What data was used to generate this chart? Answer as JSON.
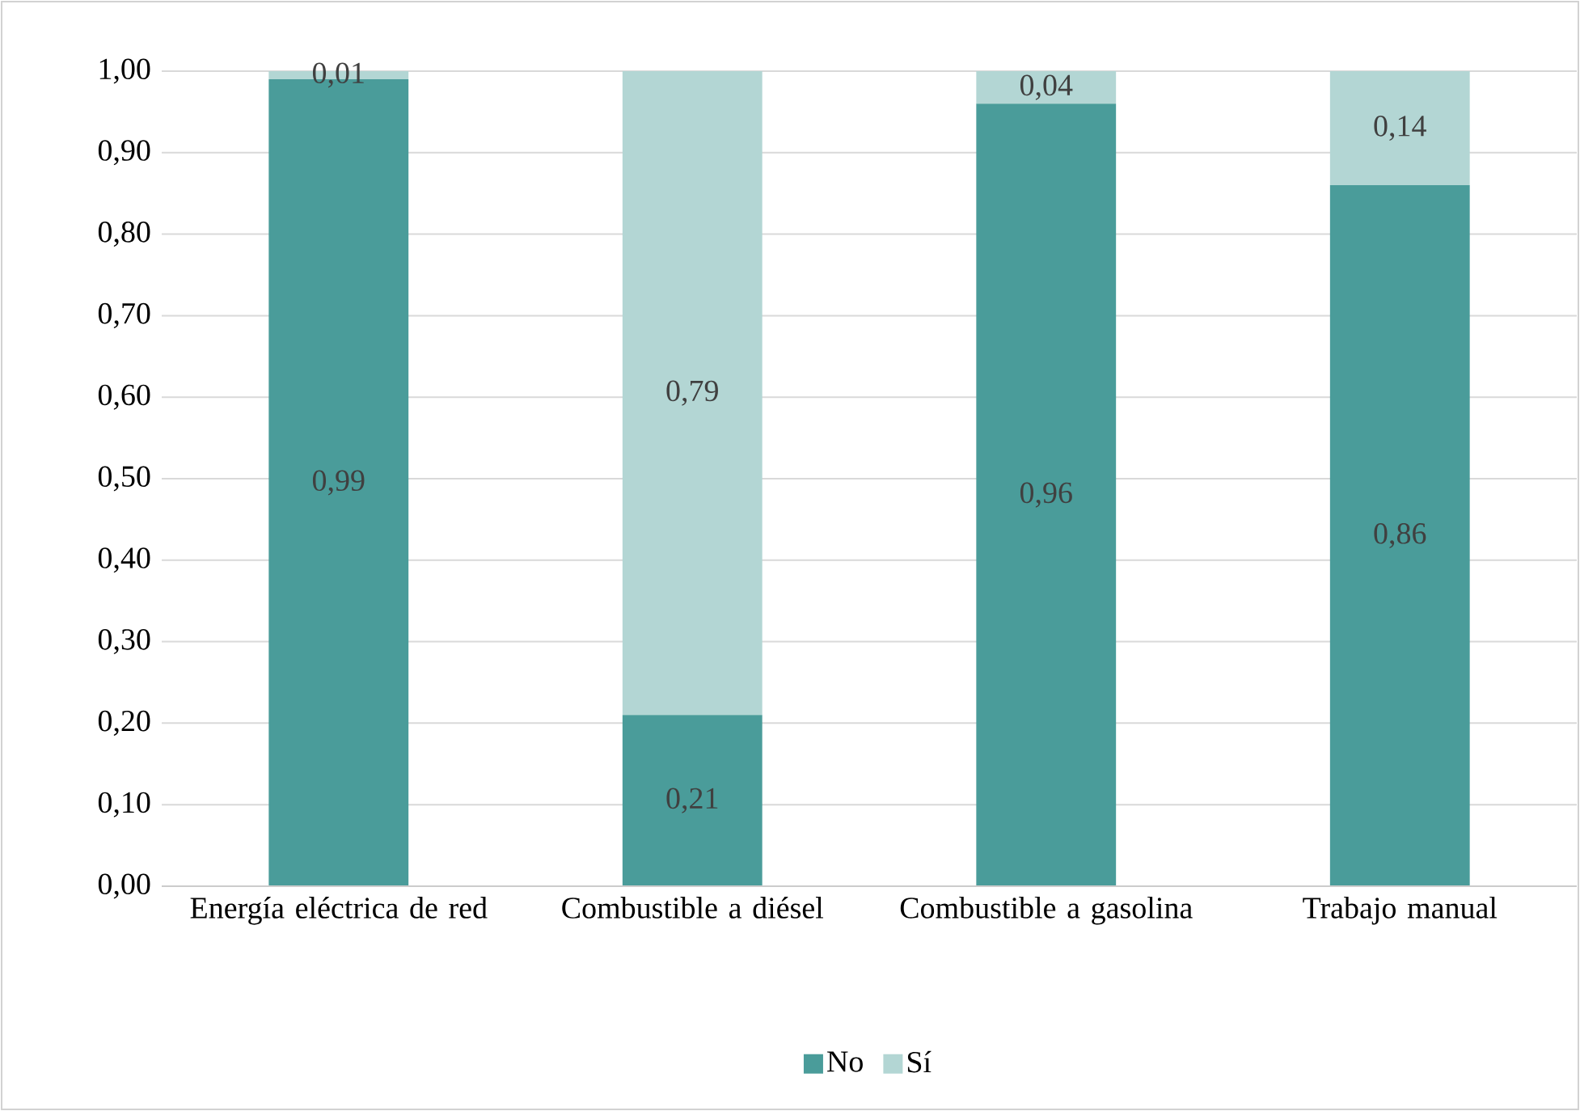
{
  "chart_data": {
    "type": "bar",
    "stacked": true,
    "categories": [
      "Energía eléctrica de red",
      "Combustible a diésel",
      "Combustible a gasolina",
      "Trabajo manual"
    ],
    "series": [
      {
        "name": "No",
        "color": "#4a9c9a",
        "values": [
          0.99,
          0.21,
          0.96,
          0.86
        ],
        "value_labels": [
          "0,99",
          "0,21",
          "0,96",
          "0,86"
        ]
      },
      {
        "name": "Sí",
        "color": "#b3d6d4",
        "values": [
          0.01,
          0.79,
          0.04,
          0.14
        ],
        "value_labels": [
          "0,01",
          "0,79",
          "0,04",
          "0,14"
        ]
      }
    ],
    "ylim": [
      0,
      1
    ],
    "yticks": [
      {
        "value": 0,
        "label": "0,00"
      },
      {
        "value": 0.1,
        "label": "0,10"
      },
      {
        "value": 0.2,
        "label": "0,20"
      },
      {
        "value": 0.3,
        "label": "0,30"
      },
      {
        "value": 0.4,
        "label": "0,40"
      },
      {
        "value": 0.5,
        "label": "0,50"
      },
      {
        "value": 0.6,
        "label": "0,60"
      },
      {
        "value": 0.7,
        "label": "0,70"
      },
      {
        "value": 0.8,
        "label": "0,80"
      },
      {
        "value": 0.9,
        "label": "0,90"
      },
      {
        "value": 1,
        "label": "1,00"
      }
    ],
    "grid": "y",
    "legend": "bottom"
  }
}
